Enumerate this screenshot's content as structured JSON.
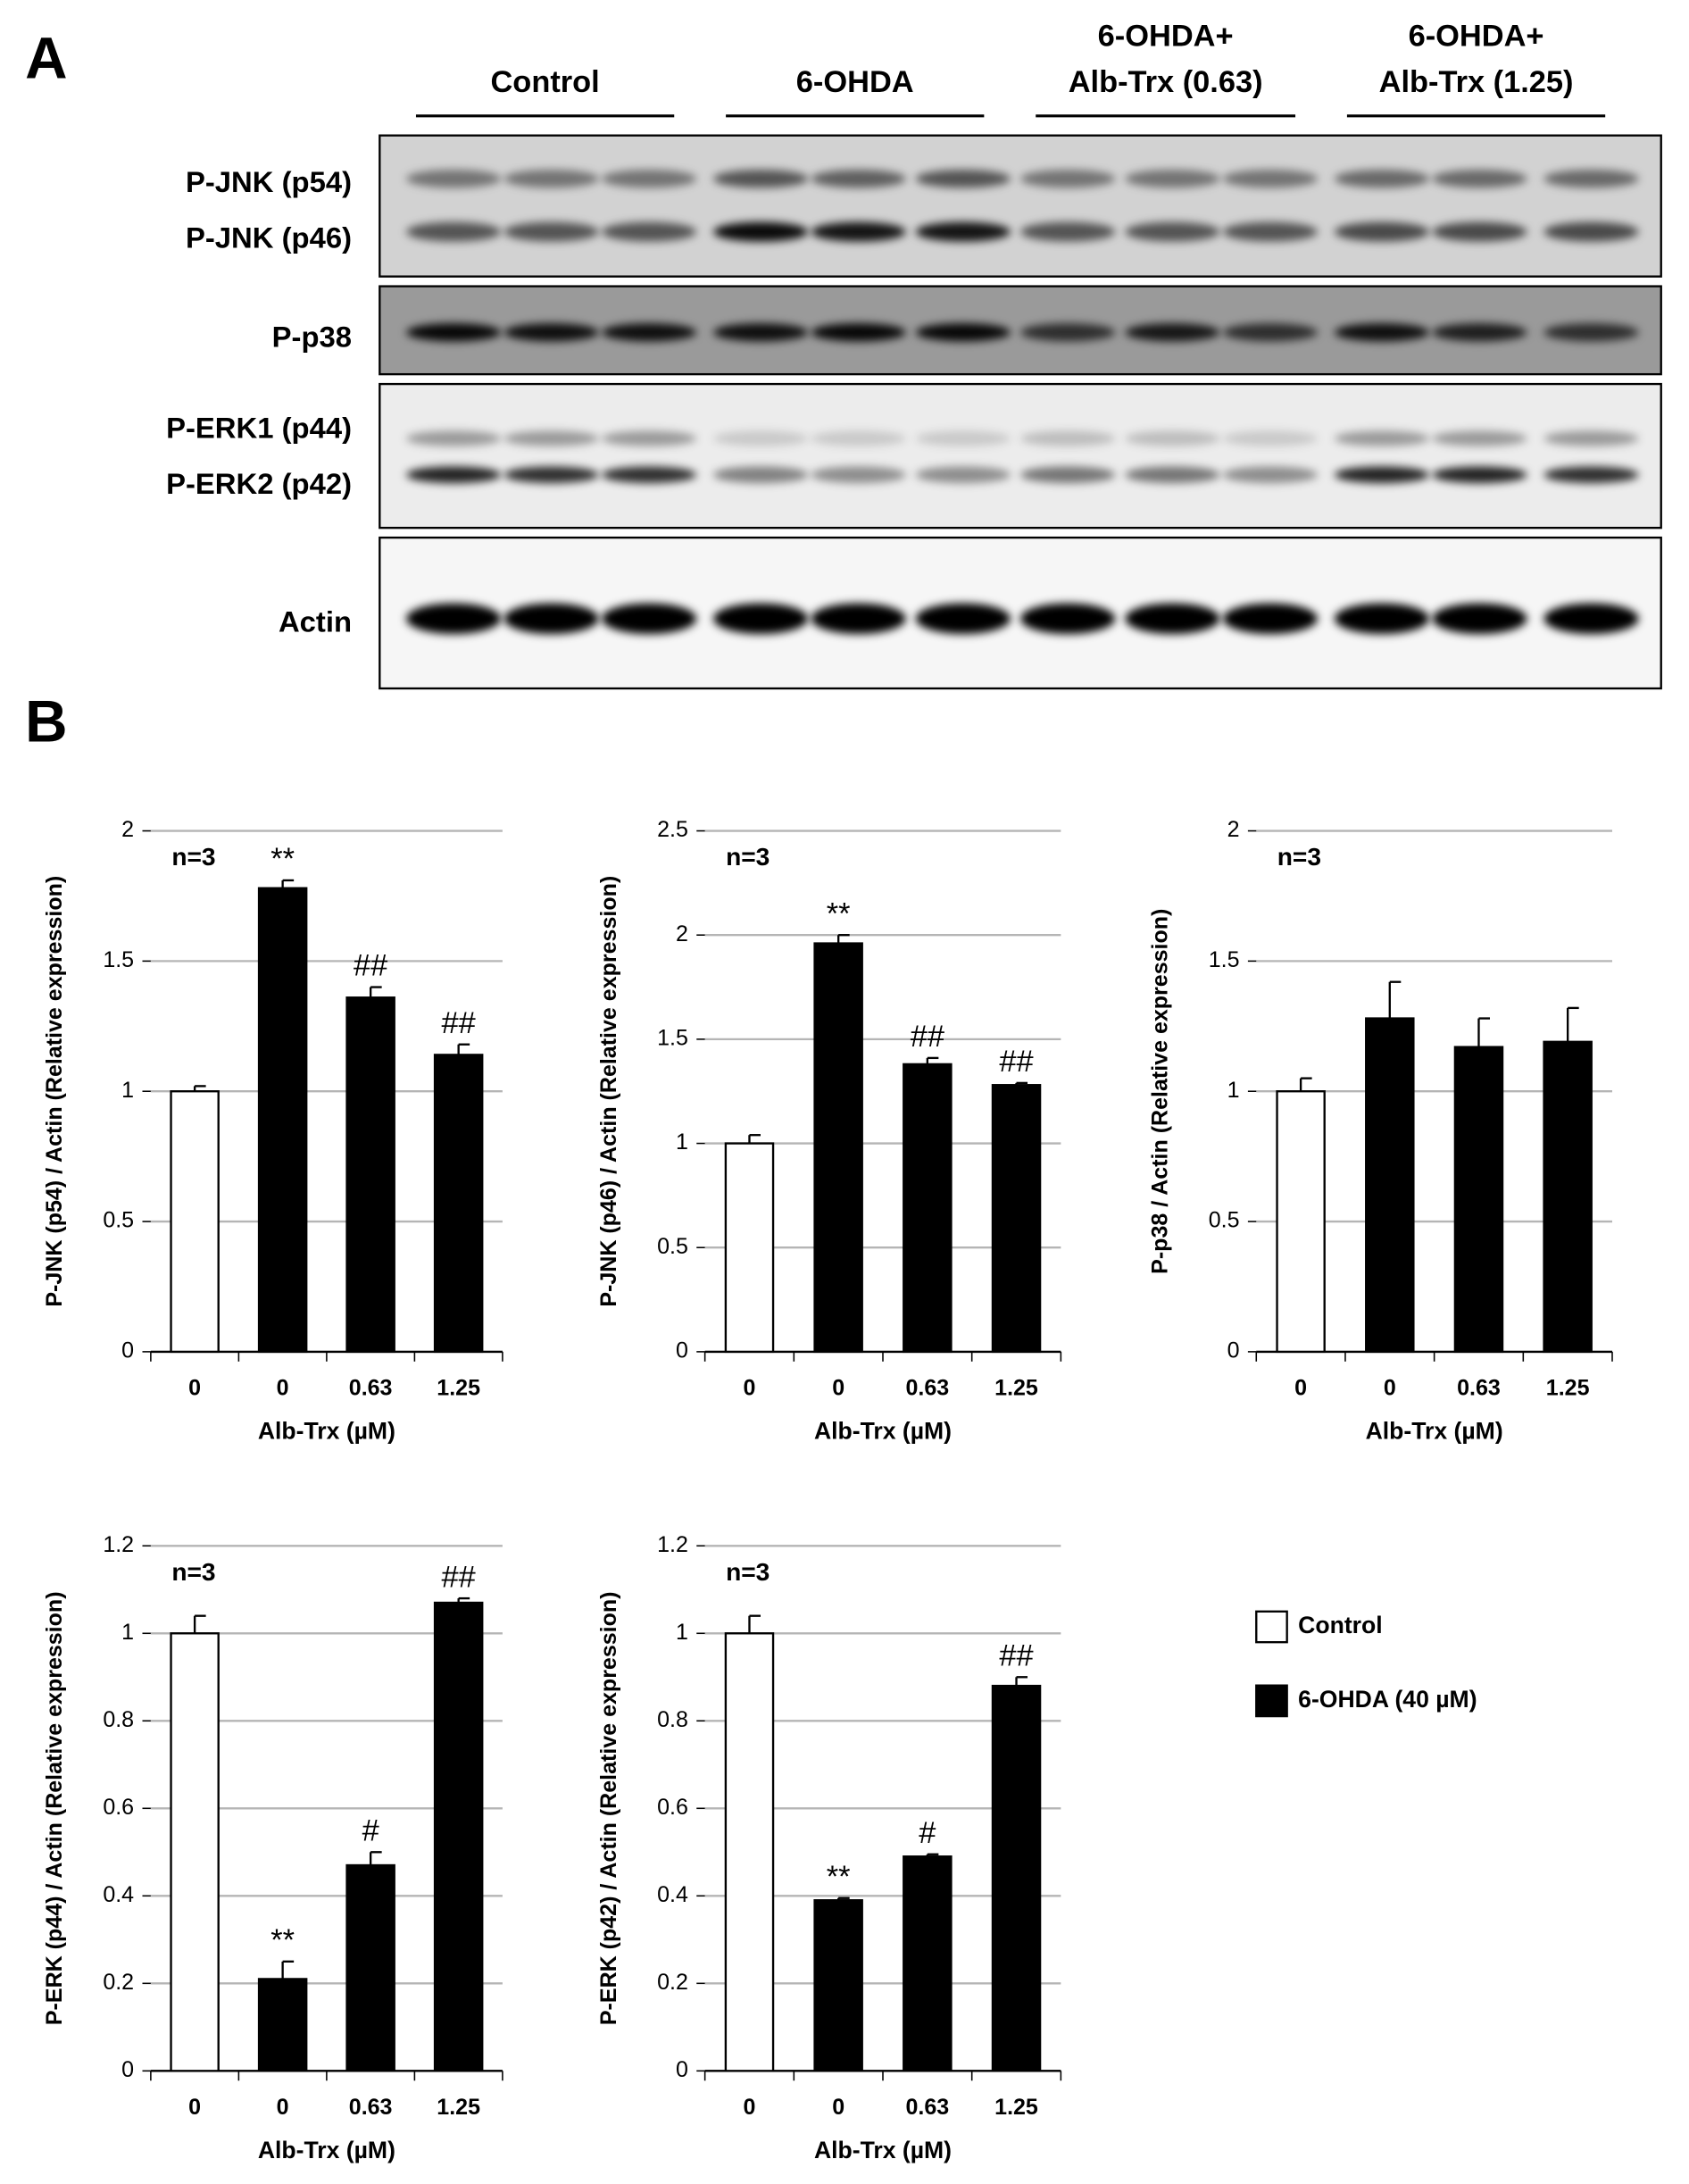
{
  "panel_a": {
    "label": "A",
    "groups": [
      {
        "lines": [
          "Control"
        ]
      },
      {
        "lines": [
          "6-OHDA"
        ]
      },
      {
        "lines": [
          "6-OHDA+",
          "Alb-Trx (0.63)"
        ]
      },
      {
        "lines": [
          "6-OHDA+",
          "Alb-Trx (1.25)"
        ]
      }
    ],
    "rows": [
      "P-JNK (p54)",
      "P-JNK (p46)",
      "P-p38",
      "P-ERK1 (p44)",
      "P-ERK2 (p42)",
      "Actin"
    ]
  },
  "panel_b_label": "B",
  "legend": [
    {
      "name": "Control",
      "color": "#ffffff"
    },
    {
      "name": "6-OHDA (40 µM)",
      "color": "#000000"
    }
  ],
  "chart_data": [
    {
      "type": "bar",
      "y_label": "P-JNK (p54) / Actin (Relative expression)",
      "x_label": "Alb-Trx (µM)",
      "annotation": "n=3",
      "categories": [
        "0",
        "0",
        "0.63",
        "1.25"
      ],
      "values": [
        1.0,
        1.78,
        1.36,
        1.14
      ],
      "errors": [
        0.02,
        0.03,
        0.04,
        0.04
      ],
      "significance": [
        null,
        "**",
        "##",
        "##"
      ],
      "colors": [
        "#ffffff",
        "#000000",
        "#000000",
        "#000000"
      ],
      "ylim": [
        0,
        2
      ],
      "yticks": [
        0,
        0.5,
        1,
        1.5,
        2
      ],
      "grid": true
    },
    {
      "type": "bar",
      "y_label": "P-JNK (p46) / Actin (Relative expression)",
      "x_label": "Alb-Trx (µM)",
      "annotation": "n=3",
      "categories": [
        "0",
        "0",
        "0.63",
        "1.25"
      ],
      "values": [
        1.0,
        1.96,
        1.38,
        1.28
      ],
      "errors": [
        0.04,
        0.04,
        0.03,
        0.01
      ],
      "significance": [
        null,
        "**",
        "##",
        "##"
      ],
      "colors": [
        "#ffffff",
        "#000000",
        "#000000",
        "#000000"
      ],
      "ylim": [
        0,
        2.5
      ],
      "yticks": [
        0,
        0.5,
        1,
        1.5,
        2,
        2.5
      ],
      "grid": true
    },
    {
      "type": "bar",
      "y_label": "P-p38 / Actin (Relative expression)",
      "x_label": "Alb-Trx (µM)",
      "annotation": "n=3",
      "categories": [
        "0",
        "0",
        "0.63",
        "1.25"
      ],
      "values": [
        1.0,
        1.28,
        1.17,
        1.19
      ],
      "errors": [
        0.05,
        0.14,
        0.11,
        0.13
      ],
      "significance": [
        null,
        null,
        null,
        null
      ],
      "colors": [
        "#ffffff",
        "#000000",
        "#000000",
        "#000000"
      ],
      "ylim": [
        0,
        2
      ],
      "yticks": [
        0,
        0.5,
        1,
        1.5,
        2
      ],
      "grid": true
    },
    {
      "type": "bar",
      "y_label": "P-ERK (p44) / Actin (Relative expression)",
      "x_label": "Alb-Trx (µM)",
      "annotation": "n=3",
      "categories": [
        "0",
        "0",
        "0.63",
        "1.25"
      ],
      "values": [
        1.0,
        0.21,
        0.47,
        1.07
      ],
      "errors": [
        0.04,
        0.04,
        0.03,
        0.01
      ],
      "significance": [
        null,
        "**",
        "#",
        "##"
      ],
      "colors": [
        "#ffffff",
        "#000000",
        "#000000",
        "#000000"
      ],
      "ylim": [
        0,
        1.2
      ],
      "yticks": [
        0,
        0.2,
        0.4,
        0.6,
        0.8,
        1,
        1.2
      ],
      "grid": true
    },
    {
      "type": "bar",
      "y_label": "P-ERK (p42) / Actin (Relative expression)",
      "x_label": "Alb-Trx (µM)",
      "annotation": "n=3",
      "categories": [
        "0",
        "0",
        "0.63",
        "1.25"
      ],
      "values": [
        1.0,
        0.39,
        0.49,
        0.88
      ],
      "errors": [
        0.04,
        0.005,
        0.005,
        0.02
      ],
      "significance": [
        null,
        "**",
        "#",
        "##"
      ],
      "colors": [
        "#ffffff",
        "#000000",
        "#000000",
        "#000000"
      ],
      "ylim": [
        0,
        1.2
      ],
      "yticks": [
        0,
        0.2,
        0.4,
        0.6,
        0.8,
        1,
        1.2
      ],
      "grid": true
    }
  ]
}
